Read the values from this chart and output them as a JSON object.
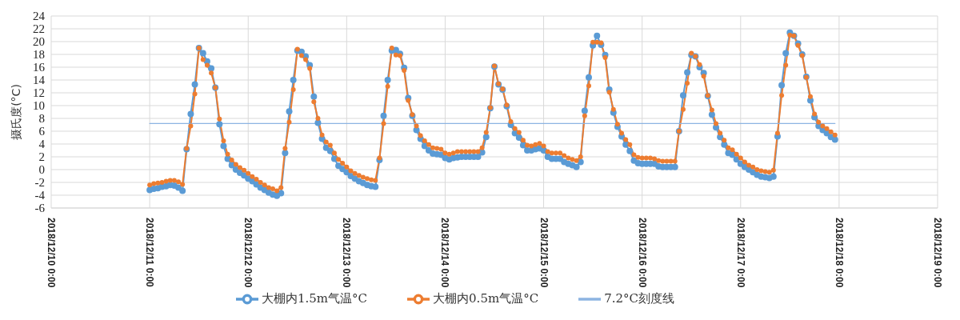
{
  "chart_data": {
    "type": "line",
    "ylabel": "摄氏度(°C)",
    "x": [
      "2018-12-11T00:00",
      "2018-12-11T01:00",
      "2018-12-11T02:00",
      "2018-12-11T03:00",
      "2018-12-11T04:00",
      "2018-12-11T05:00",
      "2018-12-11T06:00",
      "2018-12-11T07:00",
      "2018-12-11T08:00",
      "2018-12-11T09:00",
      "2018-12-11T10:00",
      "2018-12-11T11:00",
      "2018-12-11T12:00",
      "2018-12-11T13:00",
      "2018-12-11T14:00",
      "2018-12-11T15:00",
      "2018-12-11T16:00",
      "2018-12-11T17:00",
      "2018-12-11T18:00",
      "2018-12-11T19:00",
      "2018-12-11T20:00",
      "2018-12-11T21:00",
      "2018-12-11T22:00",
      "2018-12-11T23:00",
      "2018-12-12T00:00",
      "2018-12-12T01:00",
      "2018-12-12T02:00",
      "2018-12-12T03:00",
      "2018-12-12T04:00",
      "2018-12-12T05:00",
      "2018-12-12T06:00",
      "2018-12-12T07:00",
      "2018-12-12T08:00",
      "2018-12-12T09:00",
      "2018-12-12T10:00",
      "2018-12-12T11:00",
      "2018-12-12T12:00",
      "2018-12-12T13:00",
      "2018-12-12T14:00",
      "2018-12-12T15:00",
      "2018-12-12T16:00",
      "2018-12-12T17:00",
      "2018-12-12T18:00",
      "2018-12-12T19:00",
      "2018-12-12T20:00",
      "2018-12-12T21:00",
      "2018-12-12T22:00",
      "2018-12-12T23:00",
      "2018-12-13T00:00",
      "2018-12-13T01:00",
      "2018-12-13T02:00",
      "2018-12-13T03:00",
      "2018-12-13T04:00",
      "2018-12-13T05:00",
      "2018-12-13T06:00",
      "2018-12-13T07:00",
      "2018-12-13T08:00",
      "2018-12-13T09:00",
      "2018-12-13T10:00",
      "2018-12-13T11:00",
      "2018-12-13T12:00",
      "2018-12-13T13:00",
      "2018-12-13T14:00",
      "2018-12-13T15:00",
      "2018-12-13T16:00",
      "2018-12-13T17:00",
      "2018-12-13T18:00",
      "2018-12-13T19:00",
      "2018-12-13T20:00",
      "2018-12-13T21:00",
      "2018-12-13T22:00",
      "2018-12-13T23:00",
      "2018-12-14T00:00",
      "2018-12-14T01:00",
      "2018-12-14T02:00",
      "2018-12-14T03:00",
      "2018-12-14T04:00",
      "2018-12-14T05:00",
      "2018-12-14T06:00",
      "2018-12-14T07:00",
      "2018-12-14T08:00",
      "2018-12-14T09:00",
      "2018-12-14T10:00",
      "2018-12-14T11:00",
      "2018-12-14T12:00",
      "2018-12-14T13:00",
      "2018-12-14T14:00",
      "2018-12-14T15:00",
      "2018-12-14T16:00",
      "2018-12-14T17:00",
      "2018-12-14T18:00",
      "2018-12-14T19:00",
      "2018-12-14T20:00",
      "2018-12-14T21:00",
      "2018-12-14T22:00",
      "2018-12-14T23:00",
      "2018-12-15T00:00",
      "2018-12-15T01:00",
      "2018-12-15T02:00",
      "2018-12-15T03:00",
      "2018-12-15T04:00",
      "2018-12-15T05:00",
      "2018-12-15T06:00",
      "2018-12-15T07:00",
      "2018-12-15T08:00",
      "2018-12-15T09:00",
      "2018-12-15T10:00",
      "2018-12-15T11:00",
      "2018-12-15T12:00",
      "2018-12-15T13:00",
      "2018-12-15T14:00",
      "2018-12-15T15:00",
      "2018-12-15T16:00",
      "2018-12-15T17:00",
      "2018-12-15T18:00",
      "2018-12-15T19:00",
      "2018-12-15T20:00",
      "2018-12-15T21:00",
      "2018-12-15T22:00",
      "2018-12-15T23:00",
      "2018-12-16T00:00",
      "2018-12-16T01:00",
      "2018-12-16T02:00",
      "2018-12-16T03:00",
      "2018-12-16T04:00",
      "2018-12-16T05:00",
      "2018-12-16T06:00",
      "2018-12-16T07:00",
      "2018-12-16T08:00",
      "2018-12-16T09:00",
      "2018-12-16T10:00",
      "2018-12-16T11:00",
      "2018-12-16T12:00",
      "2018-12-16T13:00",
      "2018-12-16T14:00",
      "2018-12-16T15:00",
      "2018-12-16T16:00",
      "2018-12-16T17:00",
      "2018-12-16T18:00",
      "2018-12-16T19:00",
      "2018-12-16T20:00",
      "2018-12-16T21:00",
      "2018-12-16T22:00",
      "2018-12-16T23:00",
      "2018-12-17T00:00",
      "2018-12-17T01:00",
      "2018-12-17T02:00",
      "2018-12-17T03:00",
      "2018-12-17T04:00",
      "2018-12-17T05:00",
      "2018-12-17T06:00",
      "2018-12-17T07:00",
      "2018-12-17T08:00",
      "2018-12-17T09:00",
      "2018-12-17T10:00",
      "2018-12-17T11:00",
      "2018-12-17T12:00",
      "2018-12-17T13:00",
      "2018-12-17T14:00",
      "2018-12-17T15:00",
      "2018-12-17T16:00",
      "2018-12-17T17:00",
      "2018-12-17T18:00",
      "2018-12-17T19:00",
      "2018-12-17T20:00",
      "2018-12-17T21:00",
      "2018-12-17T22:00",
      "2018-12-17T23:00"
    ],
    "series": [
      {
        "name": "大棚内1.5m气温°C",
        "color": "#5b9bd5",
        "values": [
          -3.2,
          -3.0,
          -2.9,
          -2.7,
          -2.6,
          -2.4,
          -2.5,
          -2.8,
          -3.3,
          3.2,
          8.7,
          13.3,
          19.0,
          18.2,
          16.9,
          15.8,
          12.8,
          7.1,
          3.7,
          1.7,
          0.7,
          0.0,
          -0.5,
          -0.9,
          -1.4,
          -1.8,
          -2.3,
          -2.8,
          -3.2,
          -3.6,
          -3.9,
          -4.1,
          -3.7,
          2.6,
          9.1,
          14.0,
          18.6,
          18.4,
          17.7,
          16.3,
          11.4,
          7.3,
          4.8,
          3.4,
          2.9,
          1.7,
          0.6,
          0.1,
          -0.4,
          -1.0,
          -1.4,
          -1.8,
          -2.1,
          -2.4,
          -2.6,
          -2.7,
          1.5,
          8.4,
          14.0,
          18.6,
          18.7,
          18.1,
          15.9,
          11.2,
          8.4,
          6.2,
          4.8,
          3.7,
          3.0,
          2.5,
          2.4,
          2.3,
          1.8,
          1.6,
          1.8,
          1.9,
          2.0,
          2.0,
          2.0,
          2.0,
          2.0,
          2.7,
          5.1,
          9.6,
          16.1,
          13.3,
          12.5,
          9.9,
          7.0,
          5.7,
          5.0,
          3.8,
          3.0,
          3.0,
          3.2,
          3.3,
          3.0,
          2.0,
          1.7,
          1.7,
          1.7,
          1.2,
          0.9,
          0.7,
          0.4,
          1.2,
          9.2,
          14.4,
          19.4,
          20.9,
          19.5,
          17.9,
          12.5,
          8.9,
          6.7,
          5.2,
          3.9,
          2.9,
          1.4,
          1.0,
          0.9,
          0.9,
          0.9,
          0.9,
          0.5,
          0.4,
          0.4,
          0.4,
          0.4,
          6.0,
          11.6,
          15.2,
          17.9,
          17.7,
          16.0,
          15.1,
          11.5,
          8.6,
          6.6,
          5.1,
          3.9,
          2.6,
          2.3,
          1.6,
          0.9,
          0.4,
          0.0,
          -0.4,
          -0.8,
          -1.1,
          -1.2,
          -1.3,
          -1.1,
          5.2,
          13.2,
          18.2,
          21.4,
          20.9,
          19.7,
          18.0,
          14.5,
          10.8,
          8.2,
          6.8,
          6.2,
          5.7,
          5.1,
          4.7
        ]
      },
      {
        "name": "大棚内0.5m气温°C",
        "color": "#ed7d31",
        "values": [
          -2.4,
          -2.2,
          -2.1,
          -2.0,
          -1.8,
          -1.7,
          -1.7,
          -1.9,
          -2.3,
          3.3,
          6.8,
          11.8,
          19.0,
          17.2,
          16.3,
          15.1,
          12.8,
          7.9,
          4.5,
          2.4,
          1.5,
          0.8,
          0.3,
          -0.1,
          -0.6,
          -1.1,
          -1.5,
          -2.0,
          -2.4,
          -2.8,
          -3.0,
          -3.3,
          -2.8,
          3.3,
          7.4,
          12.5,
          18.8,
          17.8,
          17.2,
          15.8,
          10.6,
          8.0,
          5.4,
          4.3,
          3.8,
          2.6,
          1.6,
          1.0,
          0.4,
          -0.2,
          -0.6,
          -0.9,
          -1.2,
          -1.4,
          -1.6,
          -1.7,
          1.8,
          7.2,
          13.0,
          19.0,
          17.9,
          17.8,
          15.5,
          10.8,
          8.6,
          6.8,
          5.3,
          4.5,
          3.9,
          3.4,
          3.3,
          3.2,
          2.6,
          2.4,
          2.6,
          2.8,
          2.8,
          2.8,
          2.8,
          2.8,
          2.8,
          3.4,
          5.8,
          9.7,
          16.2,
          13.4,
          12.6,
          10.1,
          7.5,
          6.4,
          5.8,
          4.6,
          3.8,
          3.7,
          3.9,
          4.1,
          3.7,
          2.8,
          2.6,
          2.6,
          2.6,
          2.2,
          1.8,
          1.6,
          1.4,
          2.0,
          8.4,
          13.1,
          19.9,
          19.9,
          19.8,
          17.5,
          12.1,
          9.4,
          7.1,
          5.7,
          4.7,
          3.9,
          2.3,
          1.9,
          1.8,
          1.8,
          1.8,
          1.7,
          1.4,
          1.3,
          1.3,
          1.3,
          1.3,
          6.0,
          9.4,
          13.5,
          18.2,
          17.7,
          16.4,
          14.6,
          11.6,
          9.3,
          7.2,
          5.7,
          4.6,
          3.4,
          3.1,
          2.4,
          1.8,
          1.2,
          0.7,
          0.4,
          0.0,
          -0.2,
          -0.3,
          -0.4,
          -0.1,
          5.7,
          11.6,
          16.3,
          21.0,
          20.9,
          19.4,
          17.8,
          14.4,
          11.4,
          8.7,
          7.4,
          6.8,
          6.4,
          5.9,
          5.4
        ]
      },
      {
        "name": "7.2°C刻度线",
        "color": "#8db4e2",
        "marker": "none",
        "x": [
          "2018-12-11T00:00",
          "2018-12-17T23:00"
        ],
        "values": [
          7.2,
          7.2
        ]
      }
    ],
    "xlim": [
      "2018-12-10T00:00",
      "2018-12-19T00:00"
    ],
    "xticks": [
      {
        "value": "2018-12-10T00:00",
        "label": "2018/12/10 0:00"
      },
      {
        "value": "2018-12-11T00:00",
        "label": "2018/12/11 0:00"
      },
      {
        "value": "2018-12-12T00:00",
        "label": "2018/12/12 0:00"
      },
      {
        "value": "2018-12-13T00:00",
        "label": "2018/12/13 0:00"
      },
      {
        "value": "2018-12-14T00:00",
        "label": "2018/12/14 0:00"
      },
      {
        "value": "2018-12-15T00:00",
        "label": "2018/12/15 0:00"
      },
      {
        "value": "2018-12-16T00:00",
        "label": "2018/12/16 0:00"
      },
      {
        "value": "2018-12-17T00:00",
        "label": "2018/12/17 0:00"
      },
      {
        "value": "2018-12-18T00:00",
        "label": "2018/12/18 0:00"
      },
      {
        "value": "2018-12-19T00:00",
        "label": "2018/12/19 0:00"
      }
    ],
    "ylim": [
      -6,
      24
    ],
    "yticks": [
      -6,
      -4,
      -2,
      0,
      2,
      4,
      6,
      8,
      10,
      12,
      14,
      16,
      18,
      20,
      22,
      24
    ],
    "grid": true,
    "legend": "bottom",
    "marker": "circle",
    "line_style": "solid"
  }
}
